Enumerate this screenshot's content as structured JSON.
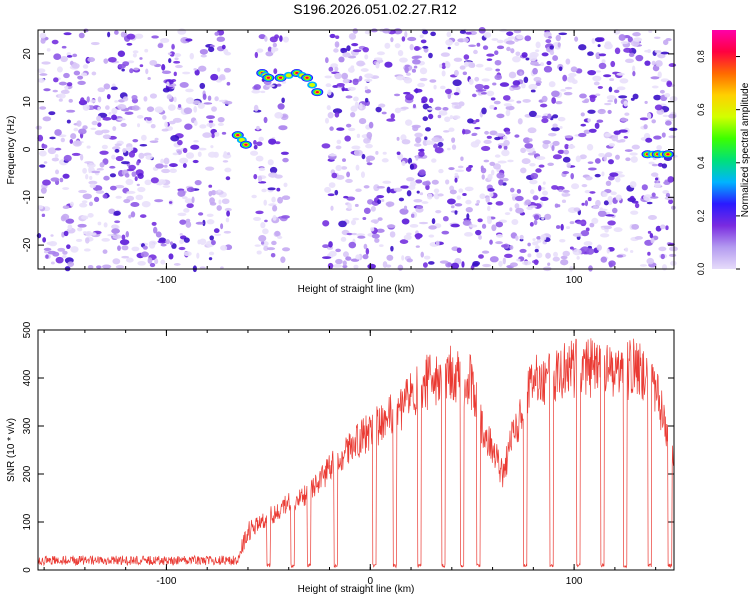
{
  "page": {
    "title": "S196.2026.051.02.27.R12"
  },
  "colorbar": {
    "label": "Normalized spectral amplitude",
    "ticks": [
      "0.0",
      "0.2",
      "0.4",
      "0.6",
      "0.8"
    ],
    "range": [
      0.0,
      0.9
    ],
    "colors": [
      "#e6dcfa",
      "#b49bf0",
      "#7a2be0",
      "#2a1aff",
      "#00b4ff",
      "#00e07a",
      "#3cff00",
      "#d2ff00",
      "#ffd000",
      "#ff6a00",
      "#ff0040",
      "#ff00a8"
    ]
  },
  "chart_data": [
    {
      "type": "heatmap",
      "title": "",
      "xlabel": "Height of straight line (km)",
      "ylabel": "Frequency (Hz)",
      "xlim": [
        -163,
        149
      ],
      "ylim": [
        -25,
        25
      ],
      "xticks": [
        "-100",
        "0",
        "100"
      ],
      "yticks": [
        "-20",
        "-10",
        "0",
        "10",
        "20"
      ],
      "gaps": [
        [
          -69,
          -57
        ],
        [
          -41,
          -22
        ],
        [
          132,
          134
        ]
      ],
      "features": [
        {
          "name": "signal-0",
          "points": [
            [
              -65,
              3
            ],
            [
              -61,
              1
            ]
          ]
        },
        {
          "name": "signal-1",
          "points": [
            [
              -53,
              16
            ],
            [
              -50,
              15
            ]
          ]
        },
        {
          "name": "signal-2",
          "points": [
            [
              -44,
              15
            ],
            [
              -36,
              16
            ],
            [
              -31,
              15
            ],
            [
              -26,
              12
            ]
          ]
        },
        {
          "name": "signal-3",
          "points": [
            [
              136,
              -1
            ],
            [
              141,
              -1
            ],
            [
              146,
              -1
            ]
          ]
        }
      ]
    },
    {
      "type": "line",
      "title": "",
      "xlabel": "Height of straight line (km)",
      "ylabel": "SNR (10 * v/v)",
      "xlim": [
        -163,
        149
      ],
      "ylim": [
        0,
        500
      ],
      "xticks": [
        "-100",
        "0",
        "100"
      ],
      "yticks": [
        "0",
        "100",
        "200",
        "300",
        "400",
        "500"
      ],
      "series": [
        {
          "name": "SNR",
          "color": "#ea3a33",
          "envelope": [
            [
              -163,
              20
            ],
            [
              -100,
              20
            ],
            [
              -65,
              20
            ],
            [
              -60,
              80
            ],
            [
              -50,
              110
            ],
            [
              -40,
              140
            ],
            [
              -30,
              160
            ],
            [
              -20,
              210
            ],
            [
              -10,
              250
            ],
            [
              0,
              290
            ],
            [
              10,
              320
            ],
            [
              20,
              360
            ],
            [
              30,
              400
            ],
            [
              40,
              410
            ],
            [
              50,
              390
            ],
            [
              55,
              300
            ],
            [
              60,
              250
            ],
            [
              65,
              200
            ],
            [
              70,
              280
            ],
            [
              80,
              390
            ],
            [
              90,
              410
            ],
            [
              100,
              420
            ],
            [
              110,
              420
            ],
            [
              120,
              410
            ],
            [
              130,
              420
            ],
            [
              140,
              380
            ],
            [
              145,
              300
            ],
            [
              149,
              230
            ]
          ],
          "dropouts": [
            -50,
            -38,
            -30,
            -17,
            2,
            12,
            24,
            36,
            45,
            53,
            76,
            89,
            102,
            114,
            125,
            137,
            147
          ]
        }
      ]
    }
  ]
}
